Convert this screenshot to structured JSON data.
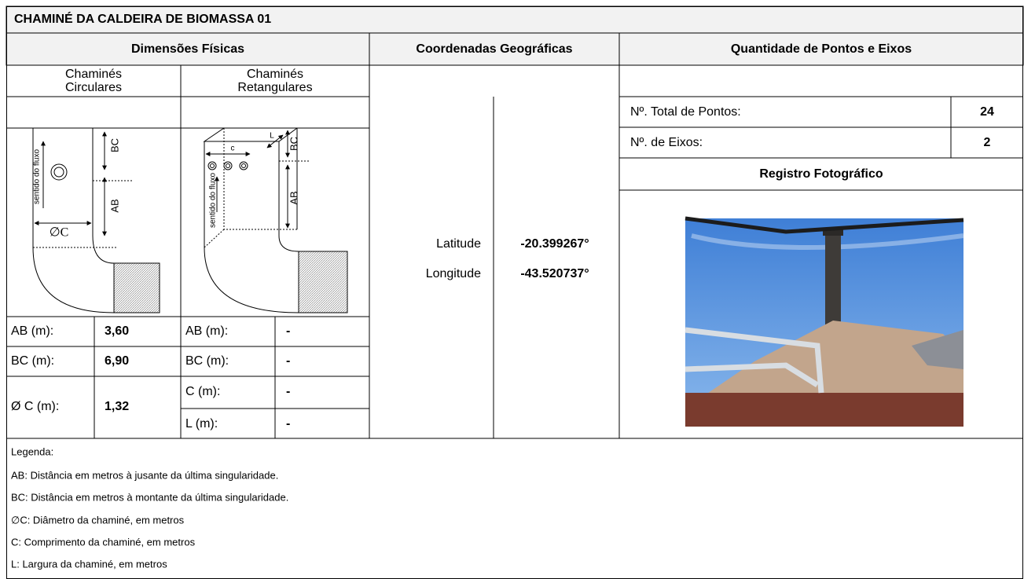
{
  "title": "CHAMINÉ DA CALDEIRA DE BIOMASSA 01",
  "sections": {
    "physical": "Dimensões Físicas",
    "coordinates": "Coordenadas Geográficas",
    "points": "Quantidade de Pontos e Eixos"
  },
  "circular": {
    "heading": [
      "Chaminés",
      "Circulares"
    ],
    "diagram": {
      "flow": "sentido do fluxo",
      "bc": "BC",
      "ab": "AB",
      "diameter": "∅C"
    },
    "rows": [
      [
        "AB (m):",
        "3,60"
      ],
      [
        "BC (m):",
        "6,90"
      ],
      [
        "Ø C (m):",
        "1,32"
      ]
    ]
  },
  "rectangular": {
    "heading": [
      "Chaminés",
      "Retangulares"
    ],
    "diagram": {
      "flow": "sentido do fluxo",
      "c": "c",
      "l": "L",
      "bc": "BC",
      "ab": "AB"
    },
    "rows": [
      [
        "AB (m):",
        "-"
      ],
      [
        "BC (m):",
        "-"
      ],
      [
        "C (m):",
        "-"
      ],
      [
        "L (m):",
        "-"
      ]
    ]
  },
  "coordinates": [
    [
      "Latitude",
      "-20.399267°"
    ],
    [
      "Longitude",
      "-43.520737°"
    ]
  ],
  "points": [
    [
      "Nº. Total de Pontos:",
      24
    ],
    [
      "Nº. de Eixos:",
      2
    ]
  ],
  "photo_heading": "Registro Fotográfico",
  "legend": [
    "Legenda:",
    "AB: Distância em metros à jusante da última singularidade.",
    "BC: Distância em metros à montante da última singularidade.",
    "∅C: Diâmetro da chaminé, em metros",
    "C: Comprimento da chaminé, em metros",
    "L: Largura da chaminé, em metros"
  ]
}
